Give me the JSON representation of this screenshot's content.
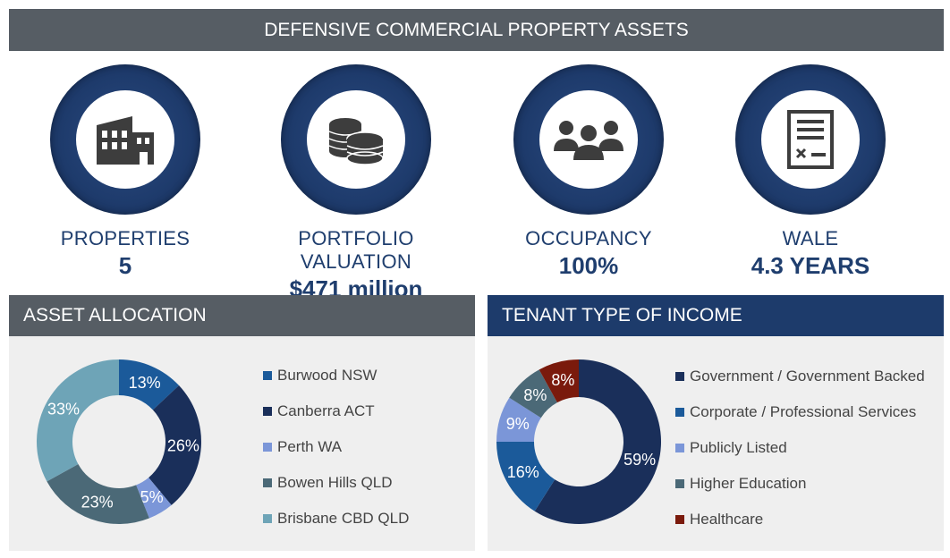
{
  "banner": {
    "title": "DEFENSIVE COMMERCIAL PROPERTY ASSETS"
  },
  "kpis": [
    {
      "label": "PROPERTIES",
      "value": "5",
      "icon": "building-icon"
    },
    {
      "label": "PORTFOLIO VALUATION",
      "value": "$471 million",
      "icon": "coins-icon"
    },
    {
      "label": "OCCUPANCY",
      "value": "100%",
      "icon": "people-icon"
    },
    {
      "label": "WALE",
      "value": "4.3 YEARS",
      "icon": "lease-document-icon"
    }
  ],
  "colors": {
    "banner": "#565d64",
    "navy": "#1f3e6e",
    "tenant_header": "#1d3b6b"
  },
  "chart_data": [
    {
      "type": "pie",
      "title": "ASSET ALLOCATION",
      "categories": [
        "Burwood NSW",
        "Canberra ACT",
        "Perth WA",
        "Bowen Hills QLD",
        "Brisbane CBD QLD"
      ],
      "values": [
        13,
        26,
        5,
        23,
        33
      ],
      "labels": [
        "13%",
        "26%",
        "5%",
        "23%",
        "33%"
      ],
      "colors": [
        "#1b5a9a",
        "#1a2f5a",
        "#7b96d8",
        "#4b6977",
        "#6ea4b7"
      ],
      "legend": "right"
    },
    {
      "type": "pie",
      "title": "TENANT TYPE OF INCOME",
      "categories": [
        "Government / Government Backed",
        "Corporate / Professional Services",
        "Publicly Listed",
        "Higher Education",
        "Healthcare"
      ],
      "values": [
        59,
        16,
        9,
        8,
        8
      ],
      "labels": [
        "59%",
        "16%",
        "9%",
        "8%",
        "8%"
      ],
      "colors": [
        "#1a2f5a",
        "#1b5a9a",
        "#7b96d8",
        "#4b6977",
        "#7a1a0c"
      ],
      "legend": "right"
    }
  ]
}
